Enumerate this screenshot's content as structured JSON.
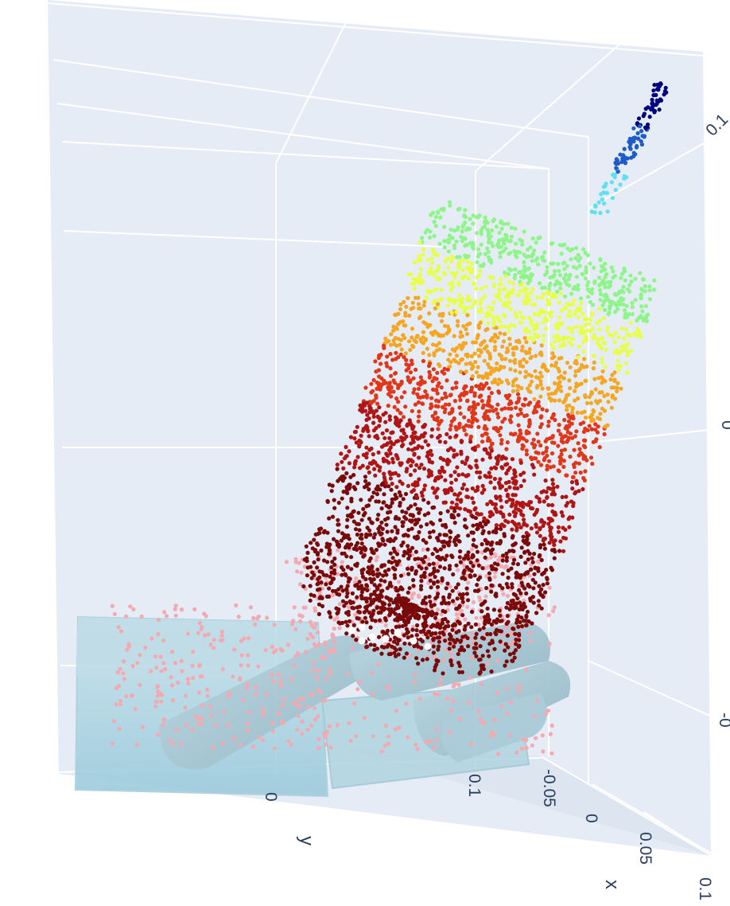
{
  "chart_data": {
    "type": "scatter3d",
    "axes": {
      "x": {
        "title": "x",
        "ticks": [
          "-0.05",
          "0",
          "0.05",
          "0.1"
        ]
      },
      "y": {
        "title": "y",
        "ticks": [
          "0.1",
          "0"
        ]
      },
      "z": {
        "title": "",
        "ticks": [
          "0.1",
          "0",
          "-0"
        ]
      }
    },
    "scene_background": "#e5ecf6",
    "grid_color": "#ffffff",
    "series": [
      {
        "kind": "points",
        "color_scale": "jet",
        "colors": [
          "#000080",
          "#1f5bc9",
          "#5fe0f0",
          "#8ff58a",
          "#e8ff4a",
          "#f5a623",
          "#e0361a",
          "#b01515",
          "#7a0a0a"
        ]
      },
      {
        "kind": "points",
        "color": "#f4a9b0"
      },
      {
        "kind": "points",
        "color": "#ffffff"
      },
      {
        "kind": "mesh",
        "color": "#add8e6",
        "opacity": 0.8
      }
    ],
    "grid": true,
    "legend": "none"
  }
}
